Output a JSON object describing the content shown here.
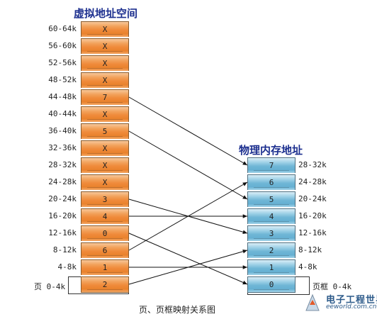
{
  "virtual": {
    "title": "虚拟地址空间",
    "pages": [
      {
        "range": "60-64k",
        "frame": "X"
      },
      {
        "range": "56-60k",
        "frame": "X"
      },
      {
        "range": "52-56k",
        "frame": "X"
      },
      {
        "range": "48-52k",
        "frame": "X"
      },
      {
        "range": "44-48k",
        "frame": "7"
      },
      {
        "range": "40-44k",
        "frame": "X"
      },
      {
        "range": "36-40k",
        "frame": "5"
      },
      {
        "range": "32-36k",
        "frame": "X"
      },
      {
        "range": "28-32k",
        "frame": "X"
      },
      {
        "range": "24-28k",
        "frame": "X"
      },
      {
        "range": "20-24k",
        "frame": "3"
      },
      {
        "range": "16-20k",
        "frame": "4"
      },
      {
        "range": "12-16k",
        "frame": "0"
      },
      {
        "range": "8-12k",
        "frame": "6"
      },
      {
        "range": "4-8k",
        "frame": "1"
      },
      {
        "range": "页 0-4k",
        "frame": "2"
      }
    ]
  },
  "physical": {
    "title": "物理内存地址",
    "frames": [
      {
        "num": "7",
        "range": "28-32k"
      },
      {
        "num": "6",
        "range": "24-28k"
      },
      {
        "num": "5",
        "range": "20-24k"
      },
      {
        "num": "4",
        "range": "16-20k"
      },
      {
        "num": "3",
        "range": "12-16k"
      },
      {
        "num": "2",
        "range": "8-12k"
      },
      {
        "num": "1",
        "range": "4-8k"
      },
      {
        "num": "0",
        "range": "页框 0-4k"
      }
    ]
  },
  "caption": "页、页框映射关系图",
  "logo": {
    "cn": "电子工程世界",
    "en": "eeworld.com.cn"
  }
}
